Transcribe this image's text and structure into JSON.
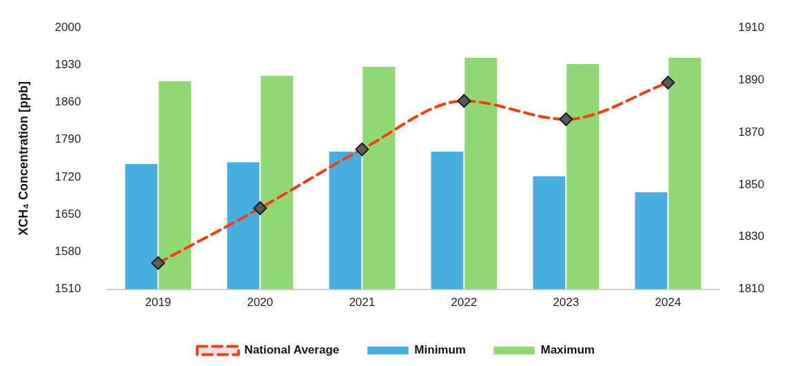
{
  "chart_data": {
    "type": "bar",
    "ylabel": "XCH₄ Concentration [ppb]",
    "categories": [
      "2019",
      "2020",
      "2021",
      "2022",
      "2023",
      "2024"
    ],
    "series": [
      {
        "name": "Minimum",
        "color": "#47afe0",
        "values": [
          1745,
          1748,
          1768,
          1768,
          1722,
          1692
        ]
      },
      {
        "name": "Maximum",
        "color": "#8fd873",
        "values": [
          1900,
          1910,
          1927,
          1944,
          1932,
          1944
        ]
      },
      {
        "name": "National Average",
        "type": "line",
        "axis": "y2",
        "color": "#ff3a10",
        "marker": "diamond",
        "line_style": "dashed",
        "values": [
          1820,
          1841,
          1863.5,
          1882,
          1875,
          1889
        ]
      }
    ],
    "ylim": [
      1510,
      2000
    ],
    "yticks": [
      1510,
      1580,
      1650,
      1720,
      1790,
      1860,
      1930,
      2000
    ],
    "y2lim": [
      1810,
      1910
    ],
    "y2ticks": [
      1810,
      1830,
      1850,
      1870,
      1890,
      1910
    ],
    "grid": false,
    "legend": "bottom"
  }
}
